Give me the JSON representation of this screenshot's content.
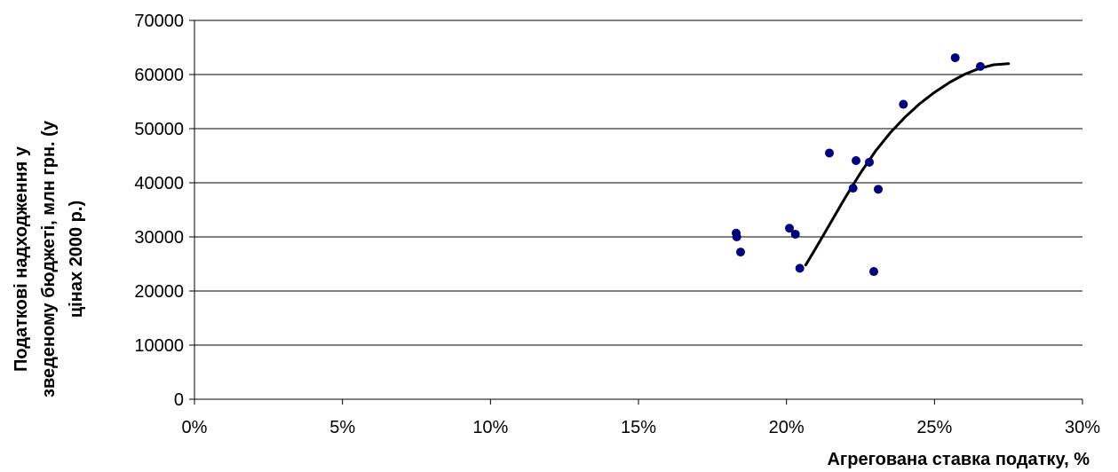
{
  "chart_data": {
    "type": "scatter",
    "title": "",
    "xlabel": "Агрегована ставка податку, %",
    "ylabel_lines": [
      "Податкові надходження у",
      "зведеному бюджеті, млн грн. (у",
      "цінах 2000 р.)"
    ],
    "xlim": [
      0,
      0.3
    ],
    "ylim": [
      0,
      70000
    ],
    "x_ticks": [
      0,
      0.05,
      0.1,
      0.15,
      0.2,
      0.25,
      0.3
    ],
    "x_tick_labels": [
      "0%",
      "5%",
      "10%",
      "15%",
      "20%",
      "25%",
      "30%"
    ],
    "y_ticks": [
      0,
      10000,
      20000,
      30000,
      40000,
      50000,
      60000,
      70000
    ],
    "y_tick_labels": [
      "0",
      "10000",
      "20000",
      "30000",
      "40000",
      "50000",
      "60000",
      "70000"
    ],
    "grid": "horizontal",
    "legend": "none",
    "point_color": "#000080",
    "trend_color": "#000000",
    "series": [
      {
        "kind": "points",
        "x": [
          0.183,
          0.1832,
          0.1845,
          0.201,
          0.203,
          0.2045,
          0.2145,
          0.2225,
          0.2235,
          0.228,
          0.2295,
          0.231,
          0.2395,
          0.257,
          0.2655
        ],
        "y": [
          30700,
          30000,
          27200,
          31600,
          30500,
          24200,
          45500,
          39000,
          44100,
          43800,
          23600,
          38800,
          54500,
          63100,
          61500
        ]
      },
      {
        "kind": "trend",
        "x": [
          0.2065,
          0.21,
          0.215,
          0.22,
          0.225,
          0.23,
          0.235,
          0.24,
          0.245,
          0.25,
          0.255,
          0.26,
          0.265,
          0.27,
          0.275
        ],
        "y": [
          24800,
          28000,
          32700,
          37400,
          41800,
          45800,
          49200,
          52100,
          54600,
          56700,
          58500,
          60000,
          61100,
          61800,
          62000
        ]
      }
    ]
  }
}
